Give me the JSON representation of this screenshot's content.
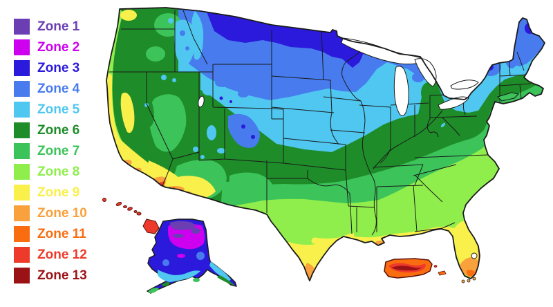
{
  "title_hint": "USDA plant hardiness zones map of the United States",
  "legend": {
    "items": [
      {
        "label": "Zone 1",
        "zone": "zone1"
      },
      {
        "label": "Zone 2",
        "zone": "zone2"
      },
      {
        "label": "Zone 3",
        "zone": "zone3"
      },
      {
        "label": "Zone 4",
        "zone": "zone4"
      },
      {
        "label": "Zone 5",
        "zone": "zone5"
      },
      {
        "label": "Zone 6",
        "zone": "zone6"
      },
      {
        "label": "Zone 7",
        "zone": "zone7"
      },
      {
        "label": "Zone 8",
        "zone": "zone8"
      },
      {
        "label": "Zone 9",
        "zone": "zone9"
      },
      {
        "label": "Zone 10",
        "zone": "zone10"
      },
      {
        "label": "Zone 11",
        "zone": "zone11"
      },
      {
        "label": "Zone 12",
        "zone": "zone12"
      },
      {
        "label": "Zone 13",
        "zone": "zone13"
      }
    ]
  },
  "map": {
    "background": "#FFFFFF",
    "border_color": "#1A1A1A",
    "water_color": "#FFFFFF",
    "zone_colors": {
      "zone1": "#6B3FB3",
      "zone2": "#CD00EF",
      "zone3": "#2B1ADB",
      "zone4": "#477BEE",
      "zone5": "#4FC7F0",
      "zone6": "#1E8C28",
      "zone7": "#3CC35A",
      "zone8": "#8FEE4C",
      "zone9": "#F9F04B",
      "zone10": "#F9A13C",
      "zone11": "#F96D10",
      "zone12": "#EE3A2A",
      "zone13": "#9B1216"
    }
  }
}
